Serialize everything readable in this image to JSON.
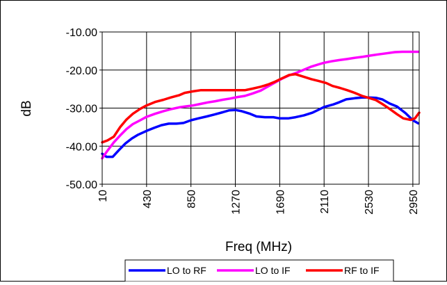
{
  "chart_data": {
    "type": "line",
    "title": "",
    "xlabel": "Freq (MHz)",
    "ylabel": "dB",
    "xlim": [
      10,
      3010
    ],
    "ylim": [
      -50,
      -10
    ],
    "grid": true,
    "legend": "bottom",
    "x_tick_labels": [
      "10",
      "430",
      "850",
      "1270",
      "1690",
      "2110",
      "2530",
      "2950"
    ],
    "x_tick_values": [
      10,
      430,
      850,
      1270,
      1690,
      2110,
      2530,
      2950
    ],
    "y_tick_labels": [
      "-10.00",
      "-20.00",
      "-30.00",
      "-40.00",
      "-50.00"
    ],
    "y_tick_values": [
      -10,
      -20,
      -30,
      -40,
      -50
    ],
    "series": [
      {
        "name": "LO to RF",
        "color": "#0000ff",
        "points": [
          [
            10,
            -42.0
          ],
          [
            50,
            -42.8
          ],
          [
            110,
            -42.8
          ],
          [
            170,
            -41.0
          ],
          [
            230,
            -39.3
          ],
          [
            290,
            -38.0
          ],
          [
            350,
            -37.0
          ],
          [
            430,
            -36.0
          ],
          [
            500,
            -35.2
          ],
          [
            570,
            -34.5
          ],
          [
            640,
            -34.1
          ],
          [
            710,
            -34.1
          ],
          [
            780,
            -33.9
          ],
          [
            850,
            -33.2
          ],
          [
            920,
            -32.7
          ],
          [
            1000,
            -32.2
          ],
          [
            1070,
            -31.7
          ],
          [
            1150,
            -31.1
          ],
          [
            1210,
            -30.6
          ],
          [
            1270,
            -30.5
          ],
          [
            1330,
            -30.8
          ],
          [
            1410,
            -31.5
          ],
          [
            1470,
            -32.2
          ],
          [
            1550,
            -32.4
          ],
          [
            1630,
            -32.4
          ],
          [
            1690,
            -32.7
          ],
          [
            1770,
            -32.7
          ],
          [
            1840,
            -32.4
          ],
          [
            1920,
            -31.9
          ],
          [
            2000,
            -31.2
          ],
          [
            2060,
            -30.4
          ],
          [
            2110,
            -29.7
          ],
          [
            2190,
            -29.1
          ],
          [
            2250,
            -28.5
          ],
          [
            2320,
            -27.7
          ],
          [
            2400,
            -27.4
          ],
          [
            2470,
            -27.2
          ],
          [
            2530,
            -27.2
          ],
          [
            2600,
            -27.3
          ],
          [
            2660,
            -27.7
          ],
          [
            2730,
            -28.8
          ],
          [
            2800,
            -29.6
          ],
          [
            2880,
            -31.3
          ],
          [
            2950,
            -33.2
          ],
          [
            3000,
            -34.0
          ]
        ]
      },
      {
        "name": "LO to IF",
        "color": "#ff00ff",
        "points": [
          [
            10,
            -43.2
          ],
          [
            60,
            -41.2
          ],
          [
            120,
            -39.0
          ],
          [
            180,
            -37.2
          ],
          [
            240,
            -35.5
          ],
          [
            300,
            -34.2
          ],
          [
            370,
            -33.2
          ],
          [
            430,
            -32.3
          ],
          [
            510,
            -31.5
          ],
          [
            590,
            -30.8
          ],
          [
            660,
            -30.3
          ],
          [
            740,
            -29.8
          ],
          [
            810,
            -29.5
          ],
          [
            870,
            -29.3
          ],
          [
            940,
            -28.9
          ],
          [
            1010,
            -28.5
          ],
          [
            1080,
            -28.2
          ],
          [
            1150,
            -27.8
          ],
          [
            1220,
            -27.5
          ],
          [
            1290,
            -27.1
          ],
          [
            1360,
            -26.8
          ],
          [
            1430,
            -26.2
          ],
          [
            1510,
            -25.4
          ],
          [
            1580,
            -24.3
          ],
          [
            1650,
            -23.2
          ],
          [
            1710,
            -22.3
          ],
          [
            1780,
            -21.4
          ],
          [
            1850,
            -20.7
          ],
          [
            1920,
            -19.9
          ],
          [
            1990,
            -19.1
          ],
          [
            2060,
            -18.5
          ],
          [
            2110,
            -18.1
          ],
          [
            2180,
            -17.7
          ],
          [
            2250,
            -17.4
          ],
          [
            2330,
            -17.1
          ],
          [
            2400,
            -16.8
          ],
          [
            2480,
            -16.5
          ],
          [
            2550,
            -16.2
          ],
          [
            2620,
            -15.9
          ],
          [
            2700,
            -15.6
          ],
          [
            2780,
            -15.3
          ],
          [
            2850,
            -15.2
          ],
          [
            2930,
            -15.2
          ],
          [
            3000,
            -15.2
          ]
        ]
      },
      {
        "name": "RF to IF",
        "color": "#ff0000",
        "points": [
          [
            10,
            -39.0
          ],
          [
            60,
            -38.5
          ],
          [
            120,
            -37.5
          ],
          [
            180,
            -35.0
          ],
          [
            240,
            -33.0
          ],
          [
            300,
            -31.5
          ],
          [
            370,
            -30.2
          ],
          [
            430,
            -29.3
          ],
          [
            510,
            -28.4
          ],
          [
            590,
            -27.8
          ],
          [
            660,
            -27.2
          ],
          [
            740,
            -26.6
          ],
          [
            790,
            -26.0
          ],
          [
            870,
            -25.6
          ],
          [
            940,
            -25.3
          ],
          [
            1010,
            -25.3
          ],
          [
            1080,
            -25.3
          ],
          [
            1150,
            -25.3
          ],
          [
            1220,
            -25.3
          ],
          [
            1290,
            -25.3
          ],
          [
            1360,
            -25.3
          ],
          [
            1430,
            -24.9
          ],
          [
            1510,
            -24.4
          ],
          [
            1580,
            -23.8
          ],
          [
            1650,
            -23.0
          ],
          [
            1710,
            -22.2
          ],
          [
            1780,
            -21.3
          ],
          [
            1840,
            -21.1
          ],
          [
            1920,
            -21.8
          ],
          [
            1990,
            -22.4
          ],
          [
            2060,
            -22.9
          ],
          [
            2130,
            -23.4
          ],
          [
            2190,
            -24.2
          ],
          [
            2260,
            -24.7
          ],
          [
            2330,
            -25.3
          ],
          [
            2400,
            -26.0
          ],
          [
            2470,
            -26.8
          ],
          [
            2530,
            -27.3
          ],
          [
            2600,
            -27.9
          ],
          [
            2660,
            -28.9
          ],
          [
            2730,
            -30.2
          ],
          [
            2800,
            -31.6
          ],
          [
            2860,
            -32.7
          ],
          [
            2930,
            -33.1
          ],
          [
            2970,
            -32.7
          ],
          [
            3010,
            -31.2
          ]
        ]
      }
    ]
  }
}
